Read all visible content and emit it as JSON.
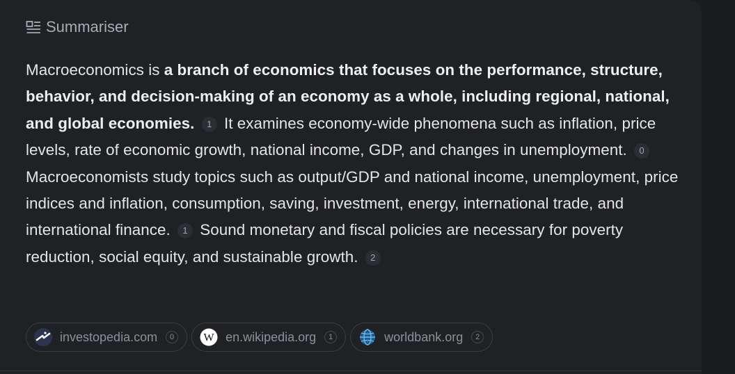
{
  "header": {
    "title": "Summariser",
    "icon": "summary-icon"
  },
  "summary": {
    "p1_plain": "Macroeconomics is ",
    "p1_bold": "a branch of economics that focuses on the performance, structure, behavior, and decision-making of an economy as a whole, including regional, national, and global economies.",
    "cite1": "1",
    "p2": "It examines economy-wide phenomena such as inflation, price levels, rate of economic growth, national income, GDP, and changes in unemployment.",
    "cite2": "0",
    "p3": "Macroeconomists study topics such as output/GDP and national income, unemployment, price indices and inflation, consumption, saving, investment, energy, international trade, and international finance.",
    "cite3": "1",
    "p4": "Sound monetary and fiscal policies are necessary for poverty reduction, social equity, and sustainable growth.",
    "cite4": "2"
  },
  "sources": [
    {
      "domain": "investopedia.com",
      "index": "0",
      "icon": "investopedia-logo-icon"
    },
    {
      "domain": "en.wikipedia.org",
      "index": "1",
      "icon": "wikipedia-logo-icon"
    },
    {
      "domain": "worldbank.org",
      "index": "2",
      "icon": "worldbank-logo-icon"
    }
  ],
  "colors": {
    "panel_bg": "#202125",
    "text": "#e4e5e8",
    "muted": "#8d9098"
  }
}
